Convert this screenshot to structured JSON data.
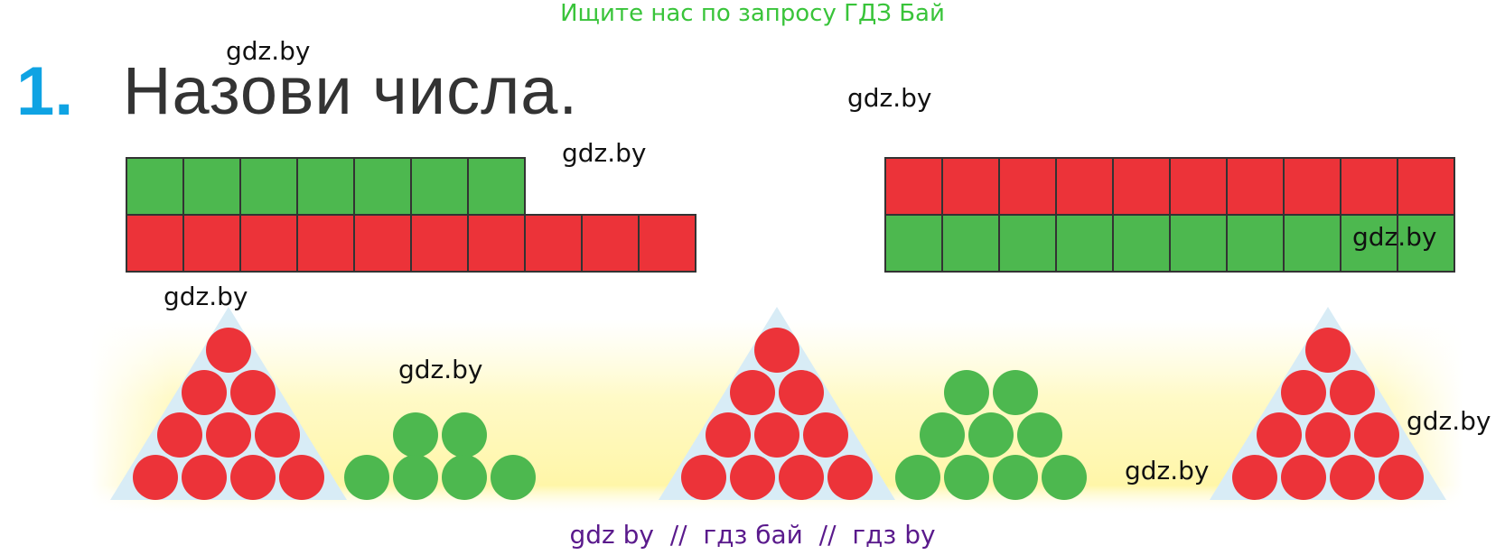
{
  "banner": "Ищите нас по запросу ГДЗ Бай",
  "exercise": {
    "number": "1.",
    "title": "Назови числа."
  },
  "watermark": "gdz.by",
  "footer": "gdz by  //  гдз бай  //  гдз by",
  "colors": {
    "red": "#ec3339",
    "green": "#4db84f",
    "triangle": "#d8ecf6",
    "banner": "#39c43a",
    "number": "#0fa3e3",
    "footer": "#5a1a8c"
  },
  "strips": [
    {
      "name": "left",
      "top_row": {
        "color": "green",
        "count": 7
      },
      "bottom_row": {
        "color": "red",
        "count": 10
      }
    },
    {
      "name": "right",
      "top_row": {
        "color": "red",
        "count": 10
      },
      "bottom_row": {
        "color": "green",
        "count": 10
      }
    }
  ],
  "groups": [
    {
      "kind": "triangle",
      "color": "red",
      "rows": [
        1,
        2,
        3,
        4
      ],
      "total": 10
    },
    {
      "kind": "pile",
      "color": "green",
      "rows": [
        2,
        4
      ],
      "total": 6
    },
    {
      "kind": "triangle",
      "color": "red",
      "rows": [
        1,
        2,
        3,
        4
      ],
      "total": 10
    },
    {
      "kind": "pile",
      "color": "green",
      "rows": [
        2,
        3,
        4
      ],
      "total": 9
    },
    {
      "kind": "triangle",
      "color": "red",
      "rows": [
        1,
        2,
        3,
        4
      ],
      "total": 10
    }
  ]
}
